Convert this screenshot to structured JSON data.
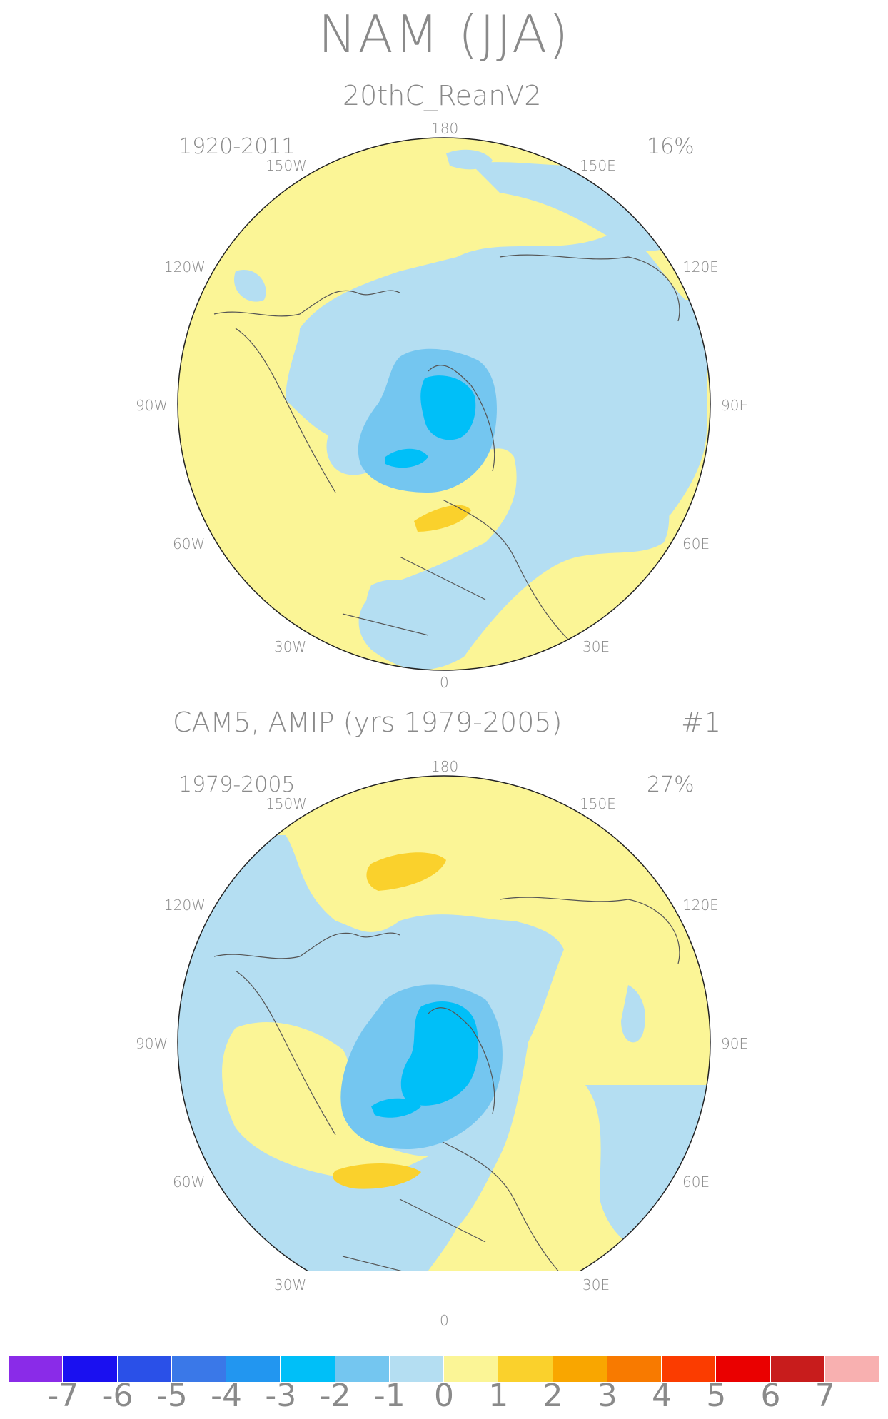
{
  "title": "NAM (JJA)",
  "panels": [
    {
      "subtitle": "20thC_ReanV2",
      "period": "1920-2011",
      "variance": "16%",
      "lon_labels": {
        "n180": "180",
        "w150": "150W",
        "e150": "150E",
        "w120": "120W",
        "e120": "120E",
        "w90": "90W",
        "e90": "90E",
        "w60": "60W",
        "e60": "60E",
        "w30": "30W",
        "e30": "30E",
        "n0": "0"
      }
    },
    {
      "subtitle": "CAM5, AMIP (yrs 1979-2005)",
      "run_id": "#1",
      "period": "1979-2005",
      "variance": "27%",
      "lon_labels": {
        "n180": "180",
        "w150": "150W",
        "e150": "150E",
        "w120": "120W",
        "e120": "120E",
        "w90": "90W",
        "e90": "90E",
        "w60": "60W",
        "e60": "60E",
        "w30": "30W",
        "e30": "30E",
        "n0": "0"
      }
    }
  ],
  "colorbar": {
    "labels": [
      "-7",
      "-6",
      "-5",
      "-4",
      "-3",
      "-2",
      "-1",
      "0",
      "1",
      "2",
      "3",
      "4",
      "5",
      "6",
      "7"
    ],
    "colors": [
      "#8a2be8",
      "#1a10f0",
      "#2a50e8",
      "#3a78e8",
      "#2296f0",
      "#00bff8",
      "#74c6f0",
      "#b4def2",
      "#fbf596",
      "#fad12c",
      "#f9a600",
      "#f87a00",
      "#fb3c00",
      "#ea0000",
      "#c81c1c",
      "#f8b0b0"
    ]
  }
}
